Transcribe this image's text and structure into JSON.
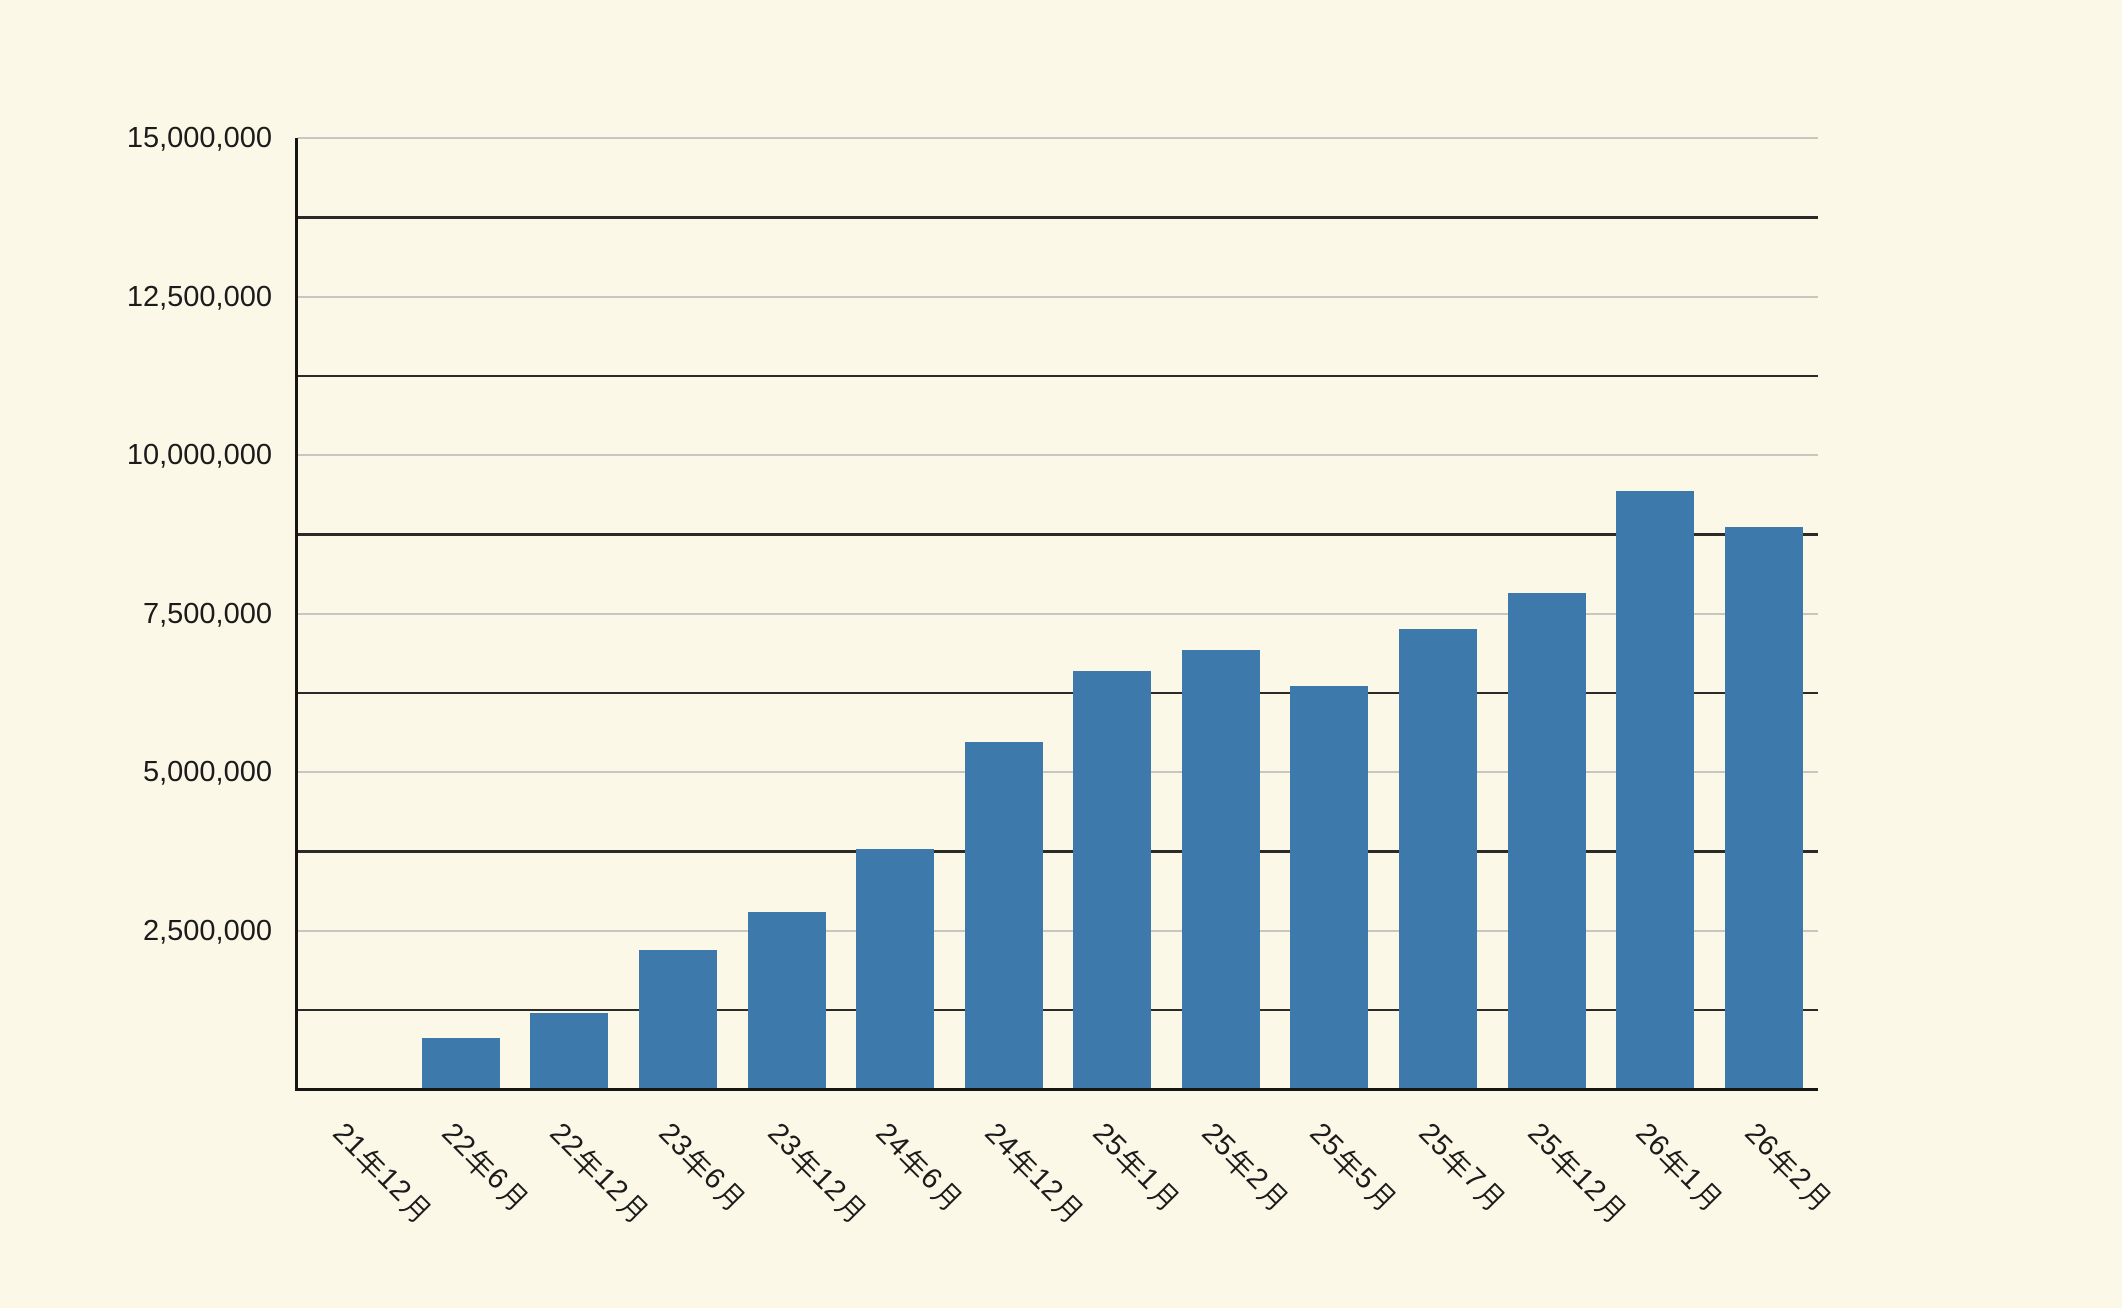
{
  "chart_data": {
    "type": "bar",
    "title": "",
    "xlabel": "",
    "ylabel": "",
    "legend": "none",
    "grid": "horizontal",
    "categories": [
      "21年12月",
      "22年6月",
      "22年12月",
      "23年6月",
      "23年12月",
      "24年6月",
      "24年12月",
      "25年1月",
      "25年2月",
      "25年5月",
      "25年7月",
      "25年12月",
      "26年1月",
      "26年2月"
    ],
    "values": [
      0,
      800000,
      1200000,
      2190000,
      2790000,
      3790000,
      5470000,
      6600000,
      6920000,
      6350000,
      7250000,
      7820000,
      9440000,
      8870000
    ],
    "ylim": [
      0,
      15000000
    ],
    "y_ticks": {
      "values": [
        2500000,
        5000000,
        7500000,
        10000000,
        12500000,
        15000000
      ],
      "labels": [
        "2,500,000",
        "5,000,000",
        "7,500,000",
        "10,000,000",
        "12,500,000",
        "15,000,000"
      ]
    },
    "minor_gridlines": [
      1250000,
      3750000,
      6250000,
      8750000,
      11250000,
      13750000
    ]
  },
  "style": {
    "background": "#FCF8E7",
    "bar_color": "#3E79AC",
    "major_gridline_color": "#C7C6C0",
    "minor_gridline_color": "#2A2A28",
    "axis_line_color": "#151514",
    "text_color": "#1B1B1B"
  }
}
